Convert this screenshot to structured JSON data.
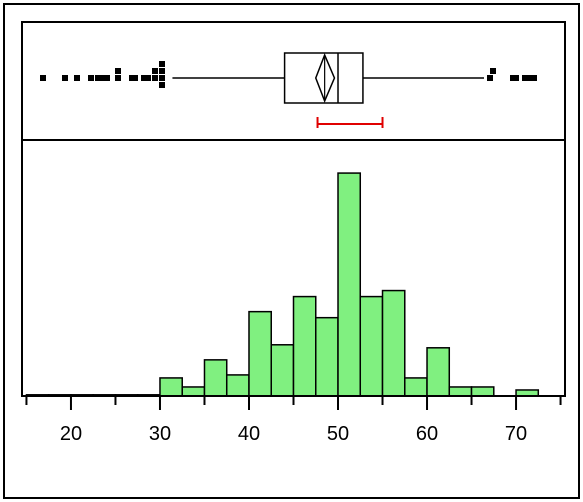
{
  "chart_data": [
    {
      "type": "boxplot",
      "title": "",
      "xlabel": "",
      "ylabel": "",
      "xlim": [
        14.5,
        75.5
      ],
      "whisker_low": 31.4,
      "q1": 44.0,
      "median": 50.0,
      "mean": 48.5,
      "q3": 52.8,
      "whisker_high": 66.4,
      "mean_diamond": [
        47.5,
        49.6
      ],
      "shortest_half": [
        47.7,
        55.0
      ],
      "outliers": [
        16.9,
        19.3,
        20.7,
        22.2,
        23.0,
        23.6,
        24.1,
        25.3,
        25.3,
        26.9,
        27.2,
        28.2,
        28.6,
        29.4,
        29.4,
        30.2,
        30.2,
        30.2,
        30.2,
        67.1,
        67.4,
        69.7,
        70.0,
        71.0,
        71.4,
        71.7,
        72.0
      ],
      "color": "#000000",
      "shortest_half_color": "#e00000"
    },
    {
      "type": "bar",
      "title": "",
      "xlabel": "",
      "ylabel": "",
      "bin_width": 2.5,
      "bins": [
        15,
        17.5,
        20,
        22.5,
        25,
        27.5,
        30,
        32.5,
        35,
        37.5,
        40,
        42.5,
        45,
        47.5,
        50,
        52.5,
        55,
        57.5,
        60,
        62.5,
        65,
        67.5,
        70
      ],
      "counts": [
        0.2,
        0.2,
        0.2,
        0.2,
        0.2,
        0.2,
        3,
        1.5,
        6,
        3.5,
        14,
        8.5,
        16.5,
        13,
        37,
        16.5,
        17.5,
        3,
        8,
        1.5,
        1.5,
        0,
        1
      ],
      "ylim": [
        0,
        40
      ],
      "xlim": [
        14.5,
        75.5
      ],
      "x_ticks_major": [
        20,
        30,
        40,
        50,
        60,
        70
      ],
      "x_ticks_minor": [
        15,
        25,
        35,
        45,
        55,
        65,
        75
      ],
      "tick_labels": [
        "20",
        "30",
        "40",
        "50",
        "60",
        "70"
      ],
      "bar_color": "#80f080",
      "grid": false
    }
  ]
}
